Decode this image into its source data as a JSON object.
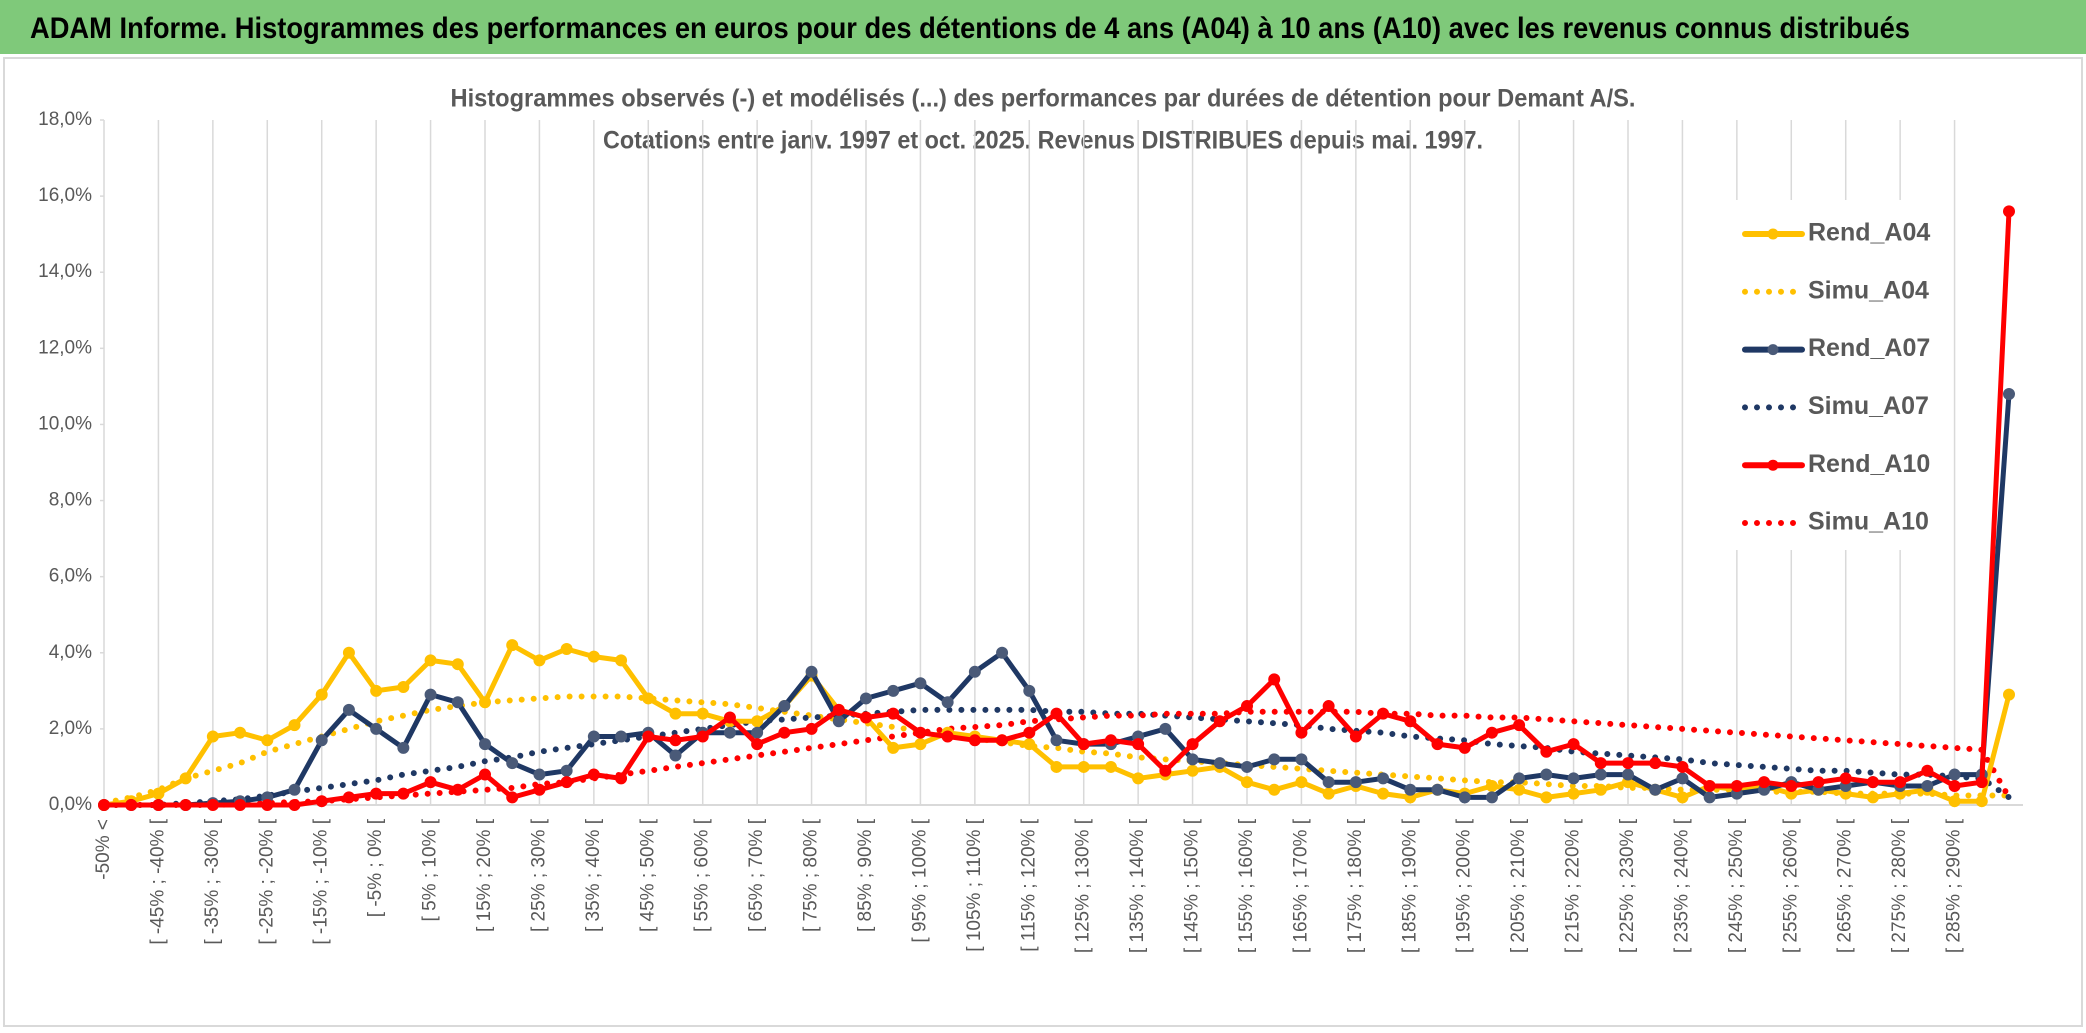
{
  "header": {
    "title": "ADAM Informe. Histogrammes des performances en euros pour des détentions de 4 ans (A04) à 10 ans (A10) avec les revenus connus distribués"
  },
  "chart_data": {
    "type": "line",
    "title": "Histogrammes observés (-) et modélisés (...) des performances par durées de détention pour Demant A/S.",
    "subtitle": "Cotations entre janv. 1997 et oct. 2025. Revenus DISTRIBUES depuis mai. 1997.",
    "categories": [
      "-50% <",
      null,
      "[ -45% ; -40% [",
      null,
      "[ -35% ; -30% [",
      null,
      "[ -25% ; -20% [",
      null,
      "[ -15% ; -10% [",
      null,
      "[ -5% ; 0% [",
      null,
      "[ 5% ; 10% [",
      null,
      "[ 15% ; 20% [",
      null,
      "[ 25% ; 30% [",
      null,
      "[ 35% ; 40% [",
      null,
      "[ 45% ; 50% [",
      null,
      "[ 55% ; 60% [",
      null,
      "[ 65% ; 70% [",
      null,
      "[ 75% ; 80% [",
      null,
      "[ 85% ; 90% [",
      null,
      "[ 95% ; 100% [",
      null,
      "[ 105% ; 110% [",
      null,
      "[ 115% ; 120% [",
      null,
      "[ 125% ; 130% [",
      null,
      "[ 135% ; 140% [",
      null,
      "[ 145% ; 150% [",
      null,
      "[ 155% ; 160% [",
      null,
      "[ 165% ; 170% [",
      null,
      "[ 175% ; 180% [",
      null,
      "[ 185% ; 190% [",
      null,
      "[ 195% ; 200% [",
      null,
      "[ 205% ; 210% [",
      null,
      "[ 215% ; 220% [",
      null,
      "[ 225% ; 230% [",
      null,
      "[ 235% ; 240% [",
      null,
      "[ 245% ; 250% [",
      null,
      "[ 255% ; 260% [",
      null,
      "[ 265% ; 270% [",
      null,
      "[ 275% ; 280% [",
      null,
      "[ 285% ; 290% [",
      null,
      null
    ],
    "series": [
      {
        "name": "Rend_A04",
        "color": "#ffc000",
        "line_style": "solid",
        "markers": true,
        "values": [
          0,
          0.1,
          0.3,
          0.7,
          1.8,
          1.9,
          1.7,
          2.1,
          2.9,
          4.0,
          3.0,
          3.1,
          3.8,
          3.7,
          2.7,
          4.2,
          3.8,
          4.1,
          3.9,
          3.8,
          2.8,
          2.4,
          2.4,
          2.2,
          2.2,
          2.6,
          3.4,
          2.5,
          2.3,
          1.5,
          1.6,
          1.9,
          1.8,
          1.7,
          1.6,
          1.0,
          1.0,
          1.0,
          0.7,
          0.8,
          0.9,
          1.0,
          0.6,
          0.4,
          0.6,
          0.3,
          0.5,
          0.3,
          0.2,
          0.4,
          0.3,
          0.5,
          0.4,
          0.2,
          0.3,
          0.4,
          0.6,
          0.4,
          0.2,
          0.5,
          0.4,
          0.5,
          0.3,
          0.4,
          0.3,
          0.2,
          0.3,
          0.4,
          0.1,
          0.1,
          2.9
        ]
      },
      {
        "name": "Simu_A04",
        "color": "#ffc000",
        "line_style": "dotted",
        "markers": false,
        "values": [
          0.05,
          0.2,
          0.4,
          0.7,
          0.9,
          1.1,
          1.4,
          1.6,
          1.8,
          2.0,
          2.2,
          2.35,
          2.5,
          2.6,
          2.7,
          2.75,
          2.8,
          2.85,
          2.85,
          2.85,
          2.8,
          2.75,
          2.7,
          2.65,
          2.55,
          2.45,
          2.35,
          2.25,
          2.15,
          2.05,
          1.95,
          1.85,
          1.75,
          1.65,
          1.55,
          1.5,
          1.4,
          1.35,
          1.25,
          1.2,
          1.15,
          1.1,
          1.05,
          1.0,
          0.95,
          0.9,
          0.85,
          0.8,
          0.75,
          0.7,
          0.65,
          0.6,
          0.6,
          0.55,
          0.5,
          0.5,
          0.45,
          0.45,
          0.4,
          0.4,
          0.4,
          0.35,
          0.35,
          0.35,
          0.3,
          0.3,
          0.3,
          0.3,
          0.25,
          0.25,
          0.25
        ]
      },
      {
        "name": "Rend_A07",
        "color": "#1f3864",
        "line_style": "solid",
        "markers": true,
        "values": [
          0,
          0,
          0,
          0,
          0.05,
          0.1,
          0.2,
          0.4,
          1.7,
          2.5,
          2.0,
          1.5,
          2.9,
          2.7,
          1.6,
          1.1,
          0.8,
          0.9,
          1.8,
          1.8,
          1.9,
          1.3,
          1.9,
          1.9,
          1.9,
          2.6,
          3.5,
          2.2,
          2.8,
          3.0,
          3.2,
          2.7,
          3.5,
          4.0,
          3.0,
          1.7,
          1.6,
          1.6,
          1.8,
          2.0,
          1.2,
          1.1,
          1.0,
          1.2,
          1.2,
          0.6,
          0.6,
          0.7,
          0.4,
          0.4,
          0.2,
          0.2,
          0.7,
          0.8,
          0.7,
          0.8,
          0.8,
          0.4,
          0.7,
          0.2,
          0.3,
          0.4,
          0.6,
          0.4,
          0.5,
          0.6,
          0.5,
          0.5,
          0.8,
          0.8,
          10.8
        ]
      },
      {
        "name": "Simu_A07",
        "color": "#1f3864",
        "line_style": "dotted",
        "markers": false,
        "values": [
          0,
          0,
          0,
          0.05,
          0.1,
          0.15,
          0.25,
          0.35,
          0.45,
          0.55,
          0.65,
          0.8,
          0.9,
          1.0,
          1.15,
          1.25,
          1.4,
          1.5,
          1.6,
          1.7,
          1.8,
          1.9,
          2.0,
          2.1,
          2.2,
          2.25,
          2.3,
          2.35,
          2.4,
          2.45,
          2.5,
          2.5,
          2.5,
          2.5,
          2.5,
          2.45,
          2.45,
          2.4,
          2.4,
          2.35,
          2.3,
          2.25,
          2.2,
          2.15,
          2.1,
          2.0,
          1.95,
          1.9,
          1.8,
          1.75,
          1.7,
          1.6,
          1.55,
          1.5,
          1.4,
          1.35,
          1.3,
          1.25,
          1.2,
          1.1,
          1.05,
          1.0,
          0.95,
          0.9,
          0.9,
          0.85,
          0.8,
          0.8,
          0.75,
          0.7,
          0.2
        ]
      },
      {
        "name": "Rend_A10",
        "color": "#ff0000",
        "line_style": "solid",
        "markers": true,
        "values": [
          0,
          0,
          0,
          0,
          0,
          0,
          0,
          0,
          0.1,
          0.2,
          0.3,
          0.3,
          0.6,
          0.4,
          0.8,
          0.2,
          0.4,
          0.6,
          0.8,
          0.7,
          1.8,
          1.7,
          1.8,
          2.3,
          1.6,
          1.9,
          2.0,
          2.5,
          2.3,
          2.4,
          1.9,
          1.8,
          1.7,
          1.7,
          1.9,
          2.4,
          1.6,
          1.7,
          1.6,
          0.9,
          1.6,
          2.2,
          2.6,
          3.3,
          1.9,
          2.6,
          1.8,
          2.4,
          2.2,
          1.6,
          1.5,
          1.9,
          2.1,
          1.4,
          1.6,
          1.1,
          1.1,
          1.1,
          1.0,
          0.5,
          0.5,
          0.6,
          0.5,
          0.6,
          0.7,
          0.6,
          0.6,
          0.9,
          0.5,
          0.6,
          15.6
        ]
      },
      {
        "name": "Simu_A10",
        "color": "#ff0000",
        "line_style": "dotted",
        "markers": false,
        "values": [
          0,
          0,
          0,
          0,
          0,
          0.02,
          0.05,
          0.08,
          0.1,
          0.15,
          0.2,
          0.25,
          0.3,
          0.35,
          0.4,
          0.45,
          0.55,
          0.6,
          0.7,
          0.8,
          0.9,
          1.0,
          1.1,
          1.2,
          1.3,
          1.4,
          1.5,
          1.6,
          1.7,
          1.8,
          1.9,
          2.0,
          2.05,
          2.1,
          2.2,
          2.25,
          2.3,
          2.35,
          2.35,
          2.4,
          2.4,
          2.4,
          2.45,
          2.45,
          2.45,
          2.45,
          2.45,
          2.4,
          2.4,
          2.35,
          2.35,
          2.3,
          2.3,
          2.25,
          2.2,
          2.15,
          2.1,
          2.05,
          2.0,
          1.95,
          1.9,
          1.85,
          1.8,
          1.75,
          1.7,
          1.65,
          1.6,
          1.55,
          1.5,
          1.45,
          0.2
        ]
      }
    ],
    "ylim": [
      0,
      18
    ],
    "yticks": [
      {
        "value": 0,
        "label": "0,0%"
      },
      {
        "value": 2,
        "label": "2,0%"
      },
      {
        "value": 4,
        "label": "4,0%"
      },
      {
        "value": 6,
        "label": "6,0%"
      },
      {
        "value": 8,
        "label": "8,0%"
      },
      {
        "value": 10,
        "label": "10,0%"
      },
      {
        "value": 12,
        "label": "12,0%"
      },
      {
        "value": 14,
        "label": "14,0%"
      },
      {
        "value": 16,
        "label": "16,0%"
      },
      {
        "value": 18,
        "label": "18,0%"
      }
    ],
    "grid": true,
    "legend": "right"
  }
}
